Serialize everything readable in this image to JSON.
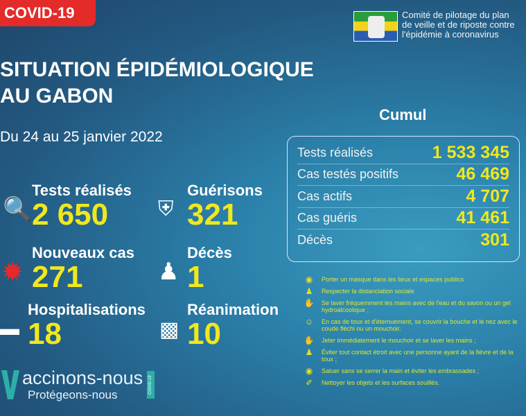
{
  "badge": "COVID-19",
  "org": {
    "line1": "Comité de pilotage du plan",
    "line2": "de veille et de riposte contre",
    "line3": "l'épidémie à coronavirus"
  },
  "title": {
    "line1": "SITUATION ÉPIDÉMIOLOGIQUE",
    "line2": "AU GABON"
  },
  "date": "Du 24 au 25 janvier 2022",
  "stats": [
    {
      "label": "Tests réalisés",
      "value": "2 650",
      "icon": "magnifier-icon"
    },
    {
      "label": "Guérisons",
      "value": "321",
      "icon": "shield-virus-icon"
    },
    {
      "label": "Nouveaux cas",
      "value": "271",
      "icon": "virus-icon"
    },
    {
      "label": "Décès",
      "value": "1",
      "icon": "person-cross-icon"
    },
    {
      "label": "Hospitalisations",
      "value": "18",
      "icon": "hospital-bed-icon"
    },
    {
      "label": "Réanimation",
      "value": "10",
      "icon": "oxygen-tank-icon"
    }
  ],
  "cumul": {
    "title": "Cumul",
    "rows": [
      {
        "label": "Tests réalisés",
        "value": "1 533 345"
      },
      {
        "label": "Cas testés positifs",
        "value": "46 469"
      },
      {
        "label": "Cas actifs",
        "value": "4 707"
      },
      {
        "label": "Cas guéris",
        "value": "41 461"
      },
      {
        "label": "Décès",
        "value": "301"
      }
    ]
  },
  "advice": [
    {
      "icon": "mask-icon",
      "text": "Porter un masque dans les lieux et espaces publics"
    },
    {
      "icon": "distance-icon",
      "text": "Respecter la distanciation sociale"
    },
    {
      "icon": "handwash-icon",
      "text": "Se laver fréquemment les mains avec de l'eau et du savon ou un gel hydroalcoolique ;"
    },
    {
      "icon": "cough-icon",
      "text": "En cas de toux et d'éternuement, se couvrir la bouche et le nez avec le coude fléchi ou un mouchoir."
    },
    {
      "icon": "handwash-icon",
      "text": "Jeter immédiatement le mouchoir et se laver les mains ;"
    },
    {
      "icon": "distance-icon",
      "text": "Éviter tout contact étroit avec une personne ayant de la fièvre et de la toux ;"
    },
    {
      "icon": "no-handshake-icon",
      "text": "Saluer sans se serrer la main et éviter les embrassades ;"
    },
    {
      "icon": "cleaning-icon",
      "text": "Nettoyer les objets et les surfaces souillés."
    }
  ],
  "vaccine": {
    "line1": "accinons-nous",
    "line2": "Protégeons-nous",
    "tag": "COVID-19"
  },
  "colors": {
    "accent": "#f0e81e",
    "badge": "#e52a2a"
  }
}
